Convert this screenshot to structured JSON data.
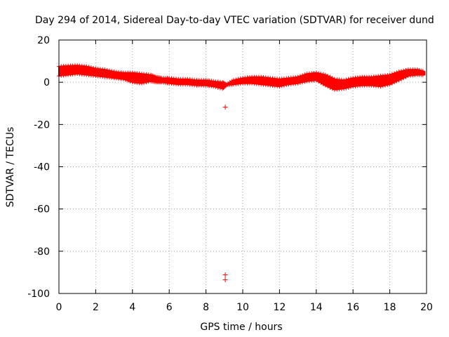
{
  "chart_data": {
    "type": "scatter",
    "title": "Day 294 of 2014, Sidereal Day-to-day VTEC variation (SDTVAR) for receiver dund",
    "xlabel": "GPS time / hours",
    "ylabel": "SDTVAR / TECUs",
    "xlim": [
      0,
      20
    ],
    "ylim": [
      -100,
      20
    ],
    "x_ticks": [
      0,
      2,
      4,
      6,
      8,
      10,
      12,
      14,
      16,
      18,
      20
    ],
    "y_ticks": [
      -100,
      -80,
      -60,
      -40,
      -20,
      0,
      20
    ],
    "grid": true,
    "marker_color": "#ff0000",
    "series": [
      {
        "name": "SDTVAR",
        "band": {
          "x": [
            0.0,
            0.5,
            1.0,
            1.5,
            2.0,
            2.5,
            3.0,
            3.5,
            4.0,
            4.5,
            5.0,
            5.3,
            5.6,
            6.0,
            6.5,
            7.0,
            7.5,
            8.0,
            8.4,
            8.9,
            9.1,
            9.5,
            10.0,
            10.5,
            11.0,
            11.5,
            12.0,
            12.5,
            13.0,
            13.5,
            14.0,
            14.5,
            15.0,
            15.5,
            16.0,
            16.5,
            17.0,
            17.5,
            18.0,
            18.5,
            19.0,
            19.5,
            19.9
          ],
          "upper": [
            7.5,
            7.8,
            8.0,
            7.5,
            6.5,
            6.0,
            5.0,
            4.5,
            4.5,
            4.0,
            3.5,
            2.5,
            2.0,
            2.0,
            1.5,
            1.5,
            1.0,
            1.0,
            0.5,
            0.0,
            -1.0,
            1.0,
            2.0,
            2.5,
            2.5,
            2.0,
            1.5,
            2.0,
            2.5,
            4.0,
            4.5,
            3.5,
            1.5,
            1.0,
            2.0,
            2.5,
            2.5,
            3.0,
            3.5,
            5.0,
            6.0,
            6.0,
            5.0
          ],
          "lower": [
            3.0,
            3.5,
            4.0,
            3.5,
            3.0,
            2.5,
            2.0,
            1.5,
            0.0,
            -0.5,
            0.5,
            0.0,
            0.0,
            -0.5,
            -1.0,
            -1.0,
            -1.5,
            -1.5,
            -2.0,
            -3.0,
            -1.5,
            -1.0,
            -0.5,
            -0.5,
            -1.0,
            -1.5,
            -2.0,
            -1.0,
            -0.5,
            0.5,
            1.0,
            -1.5,
            -3.5,
            -3.0,
            -2.0,
            -1.5,
            -1.5,
            -2.0,
            -1.0,
            1.0,
            3.0,
            3.5,
            3.5
          ]
        },
        "outliers": [
          {
            "x": 9.05,
            "y": -11.8
          },
          {
            "x": 9.05,
            "y": -91.2
          },
          {
            "x": 9.05,
            "y": -93.5
          }
        ]
      }
    ]
  }
}
